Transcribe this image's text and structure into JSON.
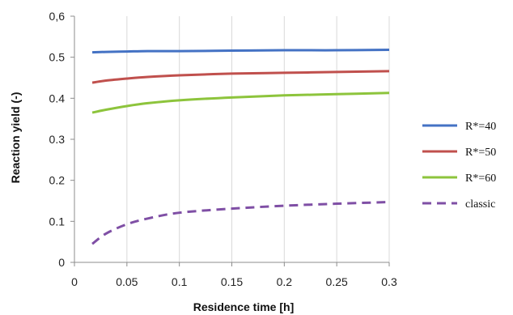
{
  "chart_data": {
    "type": "line",
    "title": "",
    "xlabel": "Residence time [h]",
    "ylabel": "Reaction yield (-)",
    "xlim": [
      0,
      0.3
    ],
    "ylim": [
      0,
      0.6
    ],
    "x_ticks": [
      "0",
      "0.05",
      "0.1",
      "0.15",
      "0.2",
      "0.25",
      "0.3"
    ],
    "y_ticks": [
      "0",
      "0.1",
      "0.2",
      "0.3",
      "0.4",
      "0.5",
      "0,6"
    ],
    "grid": "vertical",
    "legend_position": "right",
    "x": [
      0.017,
      0.03,
      0.05,
      0.07,
      0.1,
      0.15,
      0.2,
      0.25,
      0.3
    ],
    "series": [
      {
        "name": "R*=40",
        "color": "#4472c4",
        "dash": "solid",
        "values": [
          0.512,
          0.513,
          0.514,
          0.515,
          0.515,
          0.516,
          0.517,
          0.517,
          0.518
        ]
      },
      {
        "name": "R*=50",
        "color": "#c0504d",
        "dash": "solid",
        "values": [
          0.438,
          0.443,
          0.448,
          0.452,
          0.456,
          0.46,
          0.462,
          0.464,
          0.466
        ]
      },
      {
        "name": "R*=60",
        "color": "#8dc43c",
        "dash": "solid",
        "values": [
          0.365,
          0.372,
          0.381,
          0.388,
          0.395,
          0.402,
          0.407,
          0.41,
          0.413
        ]
      },
      {
        "name": "classic",
        "color": "#7f4fa5",
        "dash": "dashed",
        "values": [
          0.045,
          0.07,
          0.093,
          0.107,
          0.121,
          0.131,
          0.138,
          0.143,
          0.147
        ]
      }
    ]
  }
}
